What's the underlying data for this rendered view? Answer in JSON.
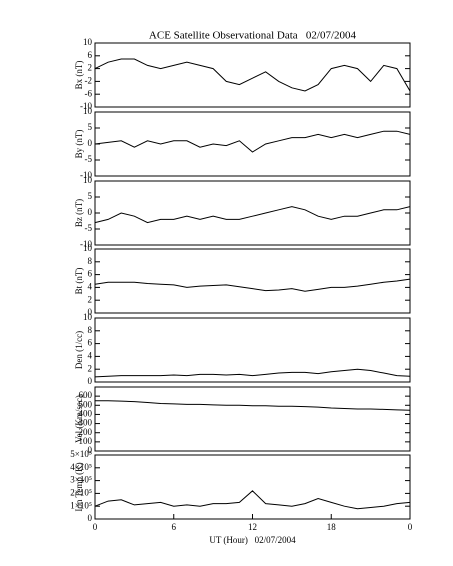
{
  "chart_data": [
    {
      "type": "line",
      "title": "ACE Satellite Observational Data   02/07/2004",
      "ylabel": "Bx (nT)",
      "x": [
        0,
        1,
        2,
        3,
        4,
        5,
        6,
        7,
        8,
        9,
        10,
        11,
        12,
        13,
        14,
        15,
        16,
        17,
        18,
        19,
        20,
        21,
        22,
        23,
        24
      ],
      "values": [
        2,
        4,
        5,
        5,
        3,
        2,
        3,
        4,
        3,
        2,
        -2,
        -3,
        -1,
        1,
        -2,
        -4,
        -5,
        -3,
        2,
        3,
        2,
        -2,
        3,
        2,
        -5
      ],
      "xlim": [
        0,
        24
      ],
      "ylim": [
        -10,
        10
      ],
      "yticks": [
        -10,
        -6,
        -2,
        2,
        6,
        10
      ],
      "color": "#000000"
    },
    {
      "type": "line",
      "ylabel": "By (nT)",
      "x": [
        0,
        1,
        2,
        3,
        4,
        5,
        6,
        7,
        8,
        9,
        10,
        11,
        12,
        13,
        14,
        15,
        16,
        17,
        18,
        19,
        20,
        21,
        22,
        23,
        24
      ],
      "values": [
        0,
        0.5,
        1,
        -1,
        1,
        0,
        1,
        1,
        -1,
        0,
        -0.5,
        1,
        -2.5,
        0,
        1,
        2,
        2,
        3,
        2,
        3,
        2,
        3,
        4,
        4,
        3
      ],
      "xlim": [
        0,
        24
      ],
      "ylim": [
        -10,
        10
      ],
      "yticks": [
        -10,
        -5,
        0,
        5,
        10
      ],
      "color": "#000000"
    },
    {
      "type": "line",
      "ylabel": "Bz (nT)",
      "x": [
        0,
        1,
        2,
        3,
        4,
        5,
        6,
        7,
        8,
        9,
        10,
        11,
        12,
        13,
        14,
        15,
        16,
        17,
        18,
        19,
        20,
        21,
        22,
        23,
        24
      ],
      "values": [
        -3,
        -2,
        0,
        -1,
        -3,
        -2,
        -2,
        -1,
        -2,
        -1,
        -2,
        -2,
        -1,
        0,
        1,
        2,
        1,
        -1,
        -2,
        -1,
        -1,
        0,
        1,
        1,
        2
      ],
      "xlim": [
        0,
        24
      ],
      "ylim": [
        -10,
        10
      ],
      "yticks": [
        -10,
        -5,
        0,
        5,
        10
      ],
      "color": "#000000"
    },
    {
      "type": "line",
      "ylabel": "Bt (nT)",
      "x": [
        0,
        1,
        2,
        3,
        4,
        5,
        6,
        7,
        8,
        9,
        10,
        11,
        12,
        13,
        14,
        15,
        16,
        17,
        18,
        19,
        20,
        21,
        22,
        23,
        24
      ],
      "values": [
        4.5,
        4.8,
        4.8,
        4.8,
        4.6,
        4.5,
        4.4,
        4,
        4.2,
        4.3,
        4.4,
        4.1,
        3.8,
        3.5,
        3.6,
        3.8,
        3.4,
        3.7,
        4,
        4,
        4.2,
        4.5,
        4.8,
        5,
        5.3
      ],
      "xlim": [
        0,
        24
      ],
      "ylim": [
        0,
        10
      ],
      "yticks": [
        0,
        2,
        4,
        6,
        8,
        10
      ],
      "color": "#000000"
    },
    {
      "type": "line",
      "ylabel": "Den (1/cc)",
      "x": [
        0,
        1,
        2,
        3,
        4,
        5,
        6,
        7,
        8,
        9,
        10,
        11,
        12,
        13,
        14,
        15,
        16,
        17,
        18,
        19,
        20,
        21,
        22,
        23,
        24
      ],
      "values": [
        0.8,
        0.9,
        1,
        1,
        1,
        1,
        1.1,
        1,
        1.2,
        1.2,
        1.1,
        1.2,
        1,
        1.2,
        1.4,
        1.5,
        1.5,
        1.3,
        1.6,
        1.8,
        2,
        1.8,
        1.4,
        1,
        0.9
      ],
      "xlim": [
        0,
        24
      ],
      "ylim": [
        0,
        10
      ],
      "yticks": [
        0,
        2,
        4,
        6,
        8,
        10
      ],
      "color": "#000000"
    },
    {
      "type": "line",
      "ylabel": "Vel (Km/sec)",
      "x": [
        0,
        1,
        2,
        3,
        4,
        5,
        6,
        7,
        8,
        9,
        10,
        11,
        12,
        13,
        14,
        15,
        16,
        17,
        18,
        19,
        20,
        21,
        22,
        23,
        24
      ],
      "values": [
        550,
        550,
        545,
        540,
        530,
        520,
        515,
        510,
        510,
        505,
        500,
        500,
        495,
        495,
        490,
        490,
        485,
        480,
        470,
        465,
        460,
        460,
        455,
        450,
        445
      ],
      "xlim": [
        0,
        24
      ],
      "ylim": [
        0,
        700
      ],
      "yticks": [
        0,
        100,
        200,
        300,
        400,
        500,
        600
      ],
      "color": "#000000"
    },
    {
      "type": "line",
      "ylabel": "Ion Temp (K)",
      "xlabel": "UT (Hour)   02/07/2004",
      "x": [
        0,
        1,
        2,
        3,
        4,
        5,
        6,
        7,
        8,
        9,
        10,
        11,
        12,
        13,
        14,
        15,
        16,
        17,
        18,
        19,
        20,
        21,
        22,
        23,
        24
      ],
      "values": [
        100000,
        140000,
        150000,
        110000,
        120000,
        130000,
        100000,
        110000,
        100000,
        120000,
        120000,
        130000,
        220000,
        120000,
        110000,
        100000,
        120000,
        160000,
        130000,
        100000,
        80000,
        90000,
        100000,
        120000,
        130000
      ],
      "xlim": [
        0,
        24
      ],
      "ylim": [
        0,
        500000
      ],
      "yticks": [
        0,
        {
          "value": 100000,
          "label": "1×10⁵"
        },
        {
          "value": 200000,
          "label": "2×10⁵"
        },
        {
          "value": 300000,
          "label": "3×10⁵"
        },
        {
          "value": 400000,
          "label": "4×10⁵"
        },
        {
          "value": 500000,
          "label": "5×10⁵"
        }
      ],
      "xticks": [
        0,
        6,
        12,
        18,
        {
          "value": 24,
          "label": "0"
        }
      ],
      "color": "#000000"
    }
  ]
}
